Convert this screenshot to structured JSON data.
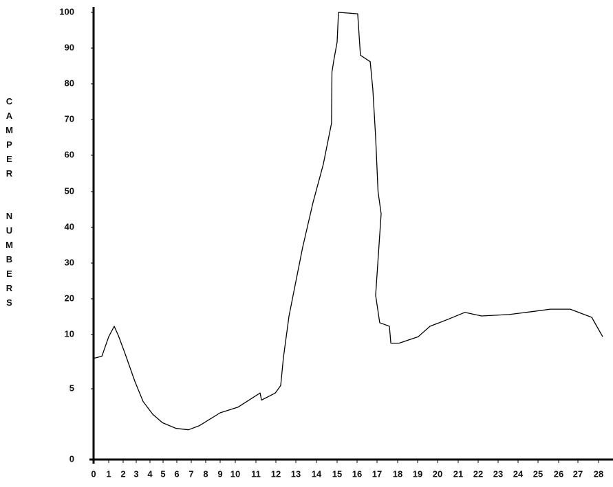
{
  "chart_data": {
    "type": "line",
    "ylabel": "CAMPER NUMBERS",
    "x": [
      0,
      0.55,
      1,
      1.38,
      1.67,
      2.16,
      2.89,
      3.5,
      4.21,
      4.95,
      5.95,
      6.81,
      7.57,
      9,
      10.13,
      10.77,
      11.21,
      11.28,
      11.97,
      12.24,
      12.38,
      12.66,
      13,
      13.33,
      13.83,
      14.33,
      14.73,
      14.75,
      14.85,
      15,
      15.07,
      16.03,
      16.17,
      16.66,
      16.79,
      16.93,
      17.05,
      17.2,
      16.93,
      17.13,
      17.6,
      17.67,
      18.07,
      19.03,
      19.62,
      20.48,
      21.33,
      22.17,
      23.55,
      24.4,
      25.6,
      26.6,
      27.67,
      28.2
    ],
    "series": [
      {
        "color": "#000000",
        "values": [
          7.8,
          8.0,
          9.8,
          12.3,
          9.9,
          8.2,
          5.7,
          4.1,
          3.2,
          2.6,
          2.2,
          2.1,
          2.4,
          3.3,
          3.7,
          4.3,
          4.7,
          4.2,
          4.7,
          5.3,
          7.9,
          15.2,
          24.8,
          34.4,
          46.9,
          57.5,
          69,
          83.3,
          86.9,
          91.7,
          100,
          99.6,
          88,
          86.2,
          78.5,
          65,
          50,
          43.8,
          21,
          13.3,
          12.3,
          9.2,
          9.2,
          9.8,
          12.3,
          14.2,
          16.2,
          15.2,
          15.6,
          16.2,
          17.1,
          17.1,
          14.8,
          9.8
        ]
      }
    ],
    "xlim": [
      0,
      28.5
    ],
    "xticks": [
      0,
      1,
      2,
      3,
      4,
      5,
      6,
      7,
      8,
      9,
      10,
      11,
      12,
      13,
      14,
      15,
      16,
      17,
      18,
      19,
      20,
      21,
      22,
      23,
      24,
      25,
      26,
      27,
      28
    ],
    "ylim": [
      0,
      100
    ],
    "yticks": [
      0,
      5,
      10,
      20,
      30,
      40,
      50,
      60,
      70,
      80,
      90,
      100
    ]
  }
}
